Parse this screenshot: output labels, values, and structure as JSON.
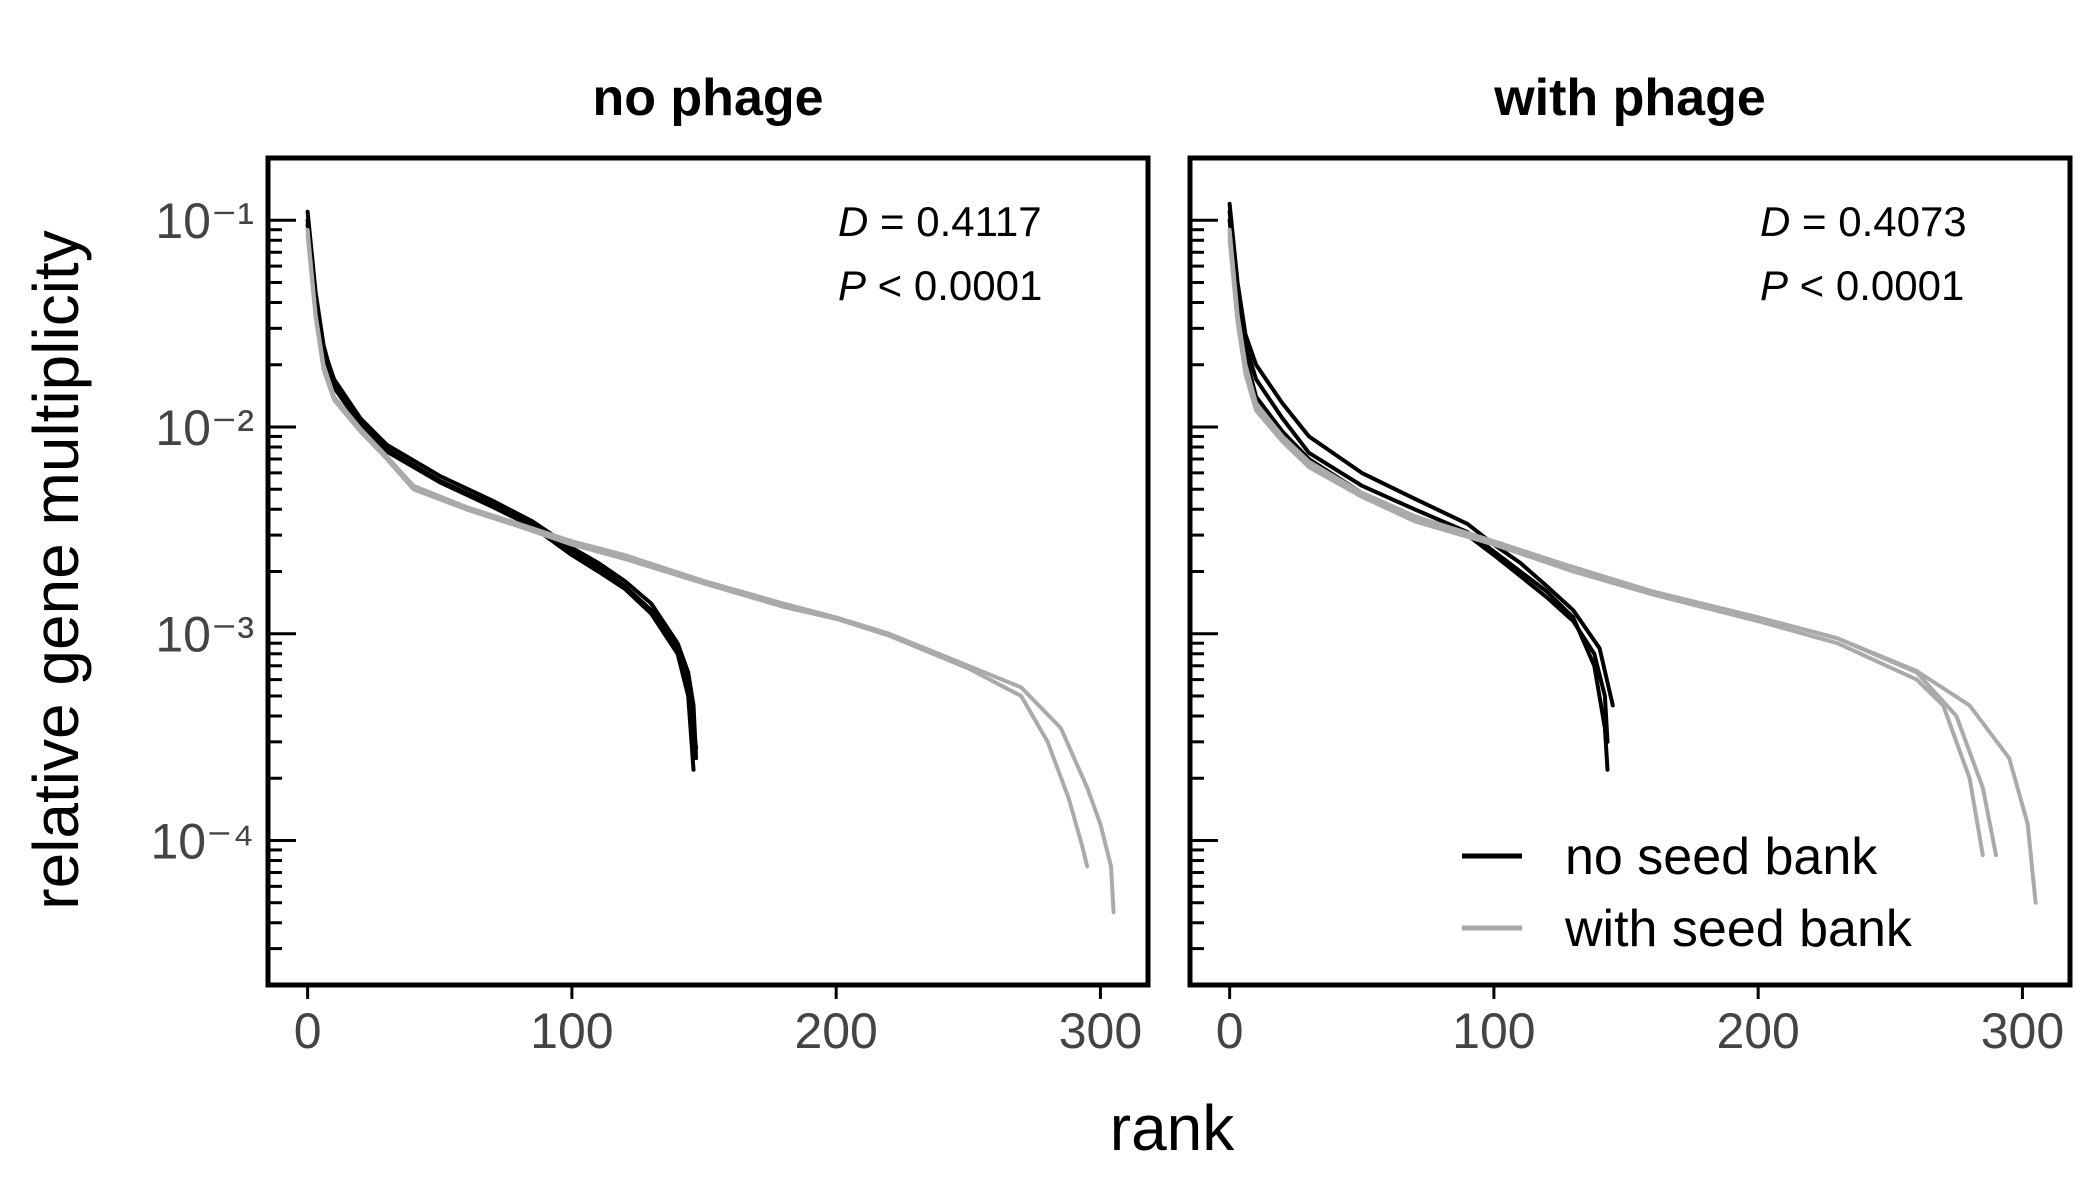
{
  "chart_data": {
    "type": "line",
    "xlabel": "rank",
    "ylabel": "relative gene multiplicity",
    "yscale": "log",
    "xlim": [
      -15,
      318
    ],
    "ylim": [
      2e-05,
      0.2
    ],
    "x_ticks": [
      0,
      100,
      200,
      300
    ],
    "y_tick_labels": [
      "10⁻¹",
      "10⁻²",
      "10⁻³",
      "10⁻⁴"
    ],
    "y_tick_values": [
      0.1,
      0.01,
      0.001,
      0.0001
    ],
    "legend": {
      "placement": "bottom-right",
      "entries": [
        {
          "label": "no seed bank",
          "color": "#000000"
        },
        {
          "label": "with seed bank",
          "color": "#aaaaaa"
        }
      ]
    },
    "panels": [
      {
        "title": "no phage",
        "stat_d_label": "D",
        "stat_d_text": " = 0.4117",
        "stat_p_label": "P",
        "stat_p_text": " < 0.0001",
        "series": [
          {
            "group": "no seed bank",
            "color": "#000000",
            "points": [
              [
                0,
                0.11
              ],
              [
                3,
                0.045
              ],
              [
                6,
                0.025
              ],
              [
                10,
                0.016
              ],
              [
                20,
                0.0105
              ],
              [
                30,
                0.0078
              ],
              [
                50,
                0.0055
              ],
              [
                70,
                0.0042
              ],
              [
                85,
                0.0034
              ],
              [
                100,
                0.0025
              ],
              [
                110,
                0.0021
              ],
              [
                120,
                0.0017
              ],
              [
                130,
                0.0013
              ],
              [
                140,
                0.00085
              ],
              [
                144,
                0.0006
              ],
              [
                146,
                0.00035
              ],
              [
                147,
                0.00028
              ]
            ]
          },
          {
            "group": "no seed bank",
            "color": "#000000",
            "points": [
              [
                0,
                0.1
              ],
              [
                3,
                0.042
              ],
              [
                6,
                0.024
              ],
              [
                10,
                0.017
              ],
              [
                20,
                0.011
              ],
              [
                30,
                0.0082
              ],
              [
                50,
                0.0058
              ],
              [
                70,
                0.0044
              ],
              [
                85,
                0.0035
              ],
              [
                100,
                0.0026
              ],
              [
                110,
                0.0022
              ],
              [
                120,
                0.0018
              ],
              [
                130,
                0.0014
              ],
              [
                140,
                0.0009
              ],
              [
                144,
                0.00065
              ],
              [
                146,
                0.00045
              ],
              [
                147,
                0.00025
              ]
            ]
          },
          {
            "group": "no seed bank",
            "color": "#000000",
            "points": [
              [
                0,
                0.095
              ],
              [
                3,
                0.04
              ],
              [
                6,
                0.023
              ],
              [
                10,
                0.0155
              ],
              [
                20,
                0.0102
              ],
              [
                30,
                0.0076
              ],
              [
                50,
                0.0054
              ],
              [
                70,
                0.0041
              ],
              [
                85,
                0.0033
              ],
              [
                100,
                0.0024
              ],
              [
                110,
                0.002
              ],
              [
                120,
                0.00165
              ],
              [
                130,
                0.00125
              ],
              [
                140,
                0.0008
              ],
              [
                144,
                0.0005
              ],
              [
                146,
                0.00022
              ]
            ]
          },
          {
            "group": "with seed bank",
            "color": "#aaaaaa",
            "points": [
              [
                0,
                0.09
              ],
              [
                3,
                0.035
              ],
              [
                6,
                0.02
              ],
              [
                10,
                0.014
              ],
              [
                20,
                0.0098
              ],
              [
                30,
                0.0072
              ],
              [
                40,
                0.0052
              ],
              [
                60,
                0.0041
              ],
              [
                80,
                0.0034
              ],
              [
                100,
                0.0028
              ],
              [
                120,
                0.0024
              ],
              [
                150,
                0.0018
              ],
              [
                180,
                0.0014
              ],
              [
                200,
                0.0012
              ],
              [
                220,
                0.001
              ],
              [
                250,
                0.0007
              ],
              [
                270,
                0.00055
              ],
              [
                285,
                0.00035
              ],
              [
                295,
                0.00018
              ],
              [
                300,
                0.00012
              ],
              [
                304,
                7.5e-05
              ],
              [
                305,
                4.5e-05
              ]
            ]
          },
          {
            "group": "with seed bank",
            "color": "#aaaaaa",
            "points": [
              [
                0,
                0.085
              ],
              [
                3,
                0.034
              ],
              [
                6,
                0.019
              ],
              [
                10,
                0.0135
              ],
              [
                20,
                0.0095
              ],
              [
                30,
                0.007
              ],
              [
                40,
                0.005
              ],
              [
                60,
                0.004
              ],
              [
                80,
                0.0033
              ],
              [
                100,
                0.0027
              ],
              [
                120,
                0.0023
              ],
              [
                150,
                0.00175
              ],
              [
                180,
                0.00135
              ],
              [
                200,
                0.00118
              ],
              [
                220,
                0.00098
              ],
              [
                250,
                0.00068
              ],
              [
                270,
                0.0005
              ],
              [
                280,
                0.0003
              ],
              [
                288,
                0.00016
              ],
              [
                293,
                9.5e-05
              ],
              [
                295,
                7.5e-05
              ]
            ]
          }
        ]
      },
      {
        "title": "with phage",
        "stat_d_label": "D",
        "stat_d_text": " = 0.4073",
        "stat_p_label": "P",
        "stat_p_text": " < 0.0001",
        "series": [
          {
            "group": "no seed bank",
            "color": "#000000",
            "points": [
              [
                0,
                0.12
              ],
              [
                3,
                0.05
              ],
              [
                6,
                0.028
              ],
              [
                10,
                0.02
              ],
              [
                20,
                0.013
              ],
              [
                30,
                0.009
              ],
              [
                50,
                0.006
              ],
              [
                70,
                0.0045
              ],
              [
                90,
                0.0034
              ],
              [
                100,
                0.0027
              ],
              [
                110,
                0.0022
              ],
              [
                120,
                0.0017
              ],
              [
                130,
                0.0013
              ],
              [
                140,
                0.00085
              ],
              [
                145,
                0.00045
              ]
            ]
          },
          {
            "group": "no seed bank",
            "color": "#000000",
            "points": [
              [
                0,
                0.11
              ],
              [
                3,
                0.045
              ],
              [
                6,
                0.025
              ],
              [
                10,
                0.017
              ],
              [
                20,
                0.011
              ],
              [
                30,
                0.0075
              ],
              [
                50,
                0.0052
              ],
              [
                70,
                0.004
              ],
              [
                90,
                0.0031
              ],
              [
                100,
                0.0025
              ],
              [
                110,
                0.002
              ],
              [
                120,
                0.0016
              ],
              [
                130,
                0.0012
              ],
              [
                138,
                0.0007
              ],
              [
                142,
                0.00035
              ],
              [
                143,
                0.00022
              ]
            ]
          },
          {
            "group": "no seed bank",
            "color": "#000000",
            "points": [
              [
                0,
                0.1
              ],
              [
                3,
                0.04
              ],
              [
                6,
                0.022
              ],
              [
                10,
                0.014
              ],
              [
                20,
                0.0095
              ],
              [
                30,
                0.007
              ],
              [
                50,
                0.0048
              ],
              [
                70,
                0.0037
              ],
              [
                90,
                0.003
              ],
              [
                100,
                0.0024
              ],
              [
                110,
                0.0019
              ],
              [
                120,
                0.0015
              ],
              [
                130,
                0.00115
              ],
              [
                138,
                0.0008
              ],
              [
                142,
                0.0005
              ],
              [
                143,
                0.0003
              ]
            ]
          },
          {
            "group": "with seed bank",
            "color": "#aaaaaa",
            "points": [
              [
                0,
                0.09
              ],
              [
                3,
                0.035
              ],
              [
                6,
                0.02
              ],
              [
                10,
                0.013
              ],
              [
                20,
                0.009
              ],
              [
                30,
                0.0068
              ],
              [
                50,
                0.0048
              ],
              [
                70,
                0.0037
              ],
              [
                100,
                0.0028
              ],
              [
                130,
                0.0021
              ],
              [
                160,
                0.0016
              ],
              [
                200,
                0.0012
              ],
              [
                230,
                0.00095
              ],
              [
                260,
                0.00065
              ],
              [
                275,
                0.0004
              ],
              [
                285,
                0.00018
              ],
              [
                290,
                8.5e-05
              ]
            ]
          },
          {
            "group": "with seed bank",
            "color": "#aaaaaa",
            "points": [
              [
                0,
                0.085
              ],
              [
                3,
                0.033
              ],
              [
                6,
                0.019
              ],
              [
                10,
                0.0125
              ],
              [
                20,
                0.0087
              ],
              [
                30,
                0.0066
              ],
              [
                50,
                0.0047
              ],
              [
                70,
                0.0036
              ],
              [
                100,
                0.0027
              ],
              [
                130,
                0.002
              ],
              [
                160,
                0.00155
              ],
              [
                200,
                0.00115
              ],
              [
                230,
                0.0009
              ],
              [
                260,
                0.0006
              ],
              [
                270,
                0.00045
              ],
              [
                280,
                0.0002
              ],
              [
                285,
                8.5e-05
              ]
            ]
          },
          {
            "group": "with seed bank",
            "color": "#aaaaaa",
            "points": [
              [
                0,
                0.08
              ],
              [
                3,
                0.032
              ],
              [
                6,
                0.018
              ],
              [
                10,
                0.012
              ],
              [
                20,
                0.0085
              ],
              [
                30,
                0.0064
              ],
              [
                50,
                0.0046
              ],
              [
                70,
                0.0035
              ],
              [
                100,
                0.0027
              ],
              [
                130,
                0.0021
              ],
              [
                160,
                0.0016
              ],
              [
                200,
                0.0012
              ],
              [
                230,
                0.00095
              ],
              [
                260,
                0.00066
              ],
              [
                280,
                0.00045
              ],
              [
                295,
                0.00025
              ],
              [
                302,
                0.00012
              ],
              [
                305,
                5e-05
              ]
            ]
          }
        ]
      }
    ]
  }
}
